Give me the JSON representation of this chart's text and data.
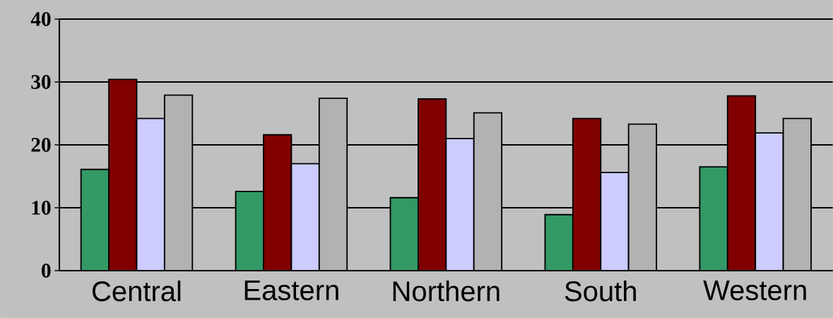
{
  "chart_data": {
    "type": "bar",
    "categories": [
      "Central",
      "Eastern",
      "Northern",
      "South",
      "Western"
    ],
    "series": [
      {
        "color": "#339966",
        "values": [
          16.1,
          12.6,
          11.6,
          8.9,
          16.5
        ]
      },
      {
        "color": "#800000",
        "values": [
          30.4,
          21.6,
          27.3,
          24.2,
          27.8
        ]
      },
      {
        "color": "#ccccff",
        "values": [
          24.2,
          17.0,
          21.0,
          15.6,
          21.9
        ]
      },
      {
        "color": "#b2b2b2",
        "values": [
          27.9,
          27.4,
          25.1,
          23.3,
          24.2
        ]
      }
    ],
    "ylim": [
      0,
      40
    ],
    "yticks": [
      0,
      10,
      20,
      30,
      40
    ],
    "grid": "y"
  }
}
